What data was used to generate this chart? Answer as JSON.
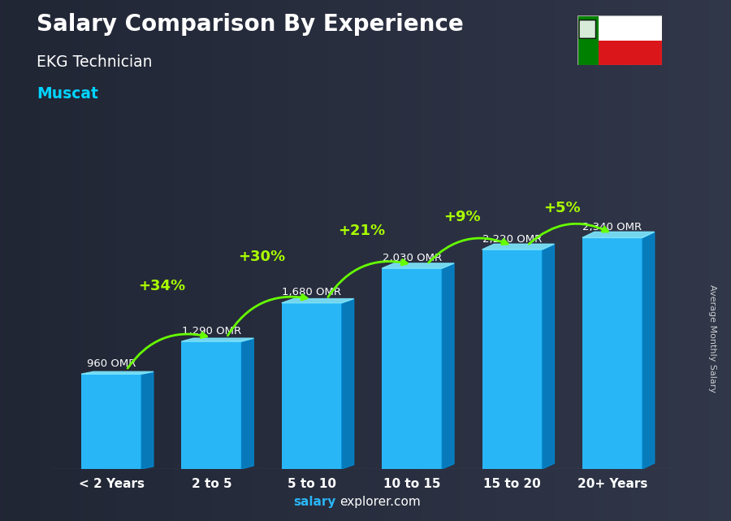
{
  "title": "Salary Comparison By Experience",
  "subtitle": "EKG Technician",
  "location": "Muscat",
  "categories": [
    "< 2 Years",
    "2 to 5",
    "5 to 10",
    "10 to 15",
    "15 to 20",
    "20+ Years"
  ],
  "values": [
    960,
    1290,
    1680,
    2030,
    2220,
    2340
  ],
  "value_labels": [
    "960 OMR",
    "1,290 OMR",
    "1,680 OMR",
    "2,030 OMR",
    "2,220 OMR",
    "2,340 OMR"
  ],
  "pct_labels": [
    "+34%",
    "+30%",
    "+21%",
    "+9%",
    "+5%"
  ],
  "bar_color": "#29b6f6",
  "bar_top_color": "#7ee8ff",
  "bar_side_color": "#0288d1",
  "pct_color": "#aaff00",
  "arrow_color": "#66ff00",
  "title_color": "#ffffff",
  "subtitle_color": "#ffffff",
  "location_color": "#00d4ff",
  "value_label_color": "#ffffff",
  "ylabel_text": "Average Monthly Salary",
  "footer_bold": "salary",
  "footer_regular": "explorer.com",
  "footer_color_bold": "#29b6f6",
  "footer_color_regular": "#ffffff",
  "bg_color": "#4a4a5a",
  "ylim": [
    0,
    2900
  ],
  "bar_width": 0.6,
  "bar_depth": 0.12,
  "flag_colors": {
    "white": "#ffffff",
    "red": "#db161b",
    "green": "#008000"
  }
}
